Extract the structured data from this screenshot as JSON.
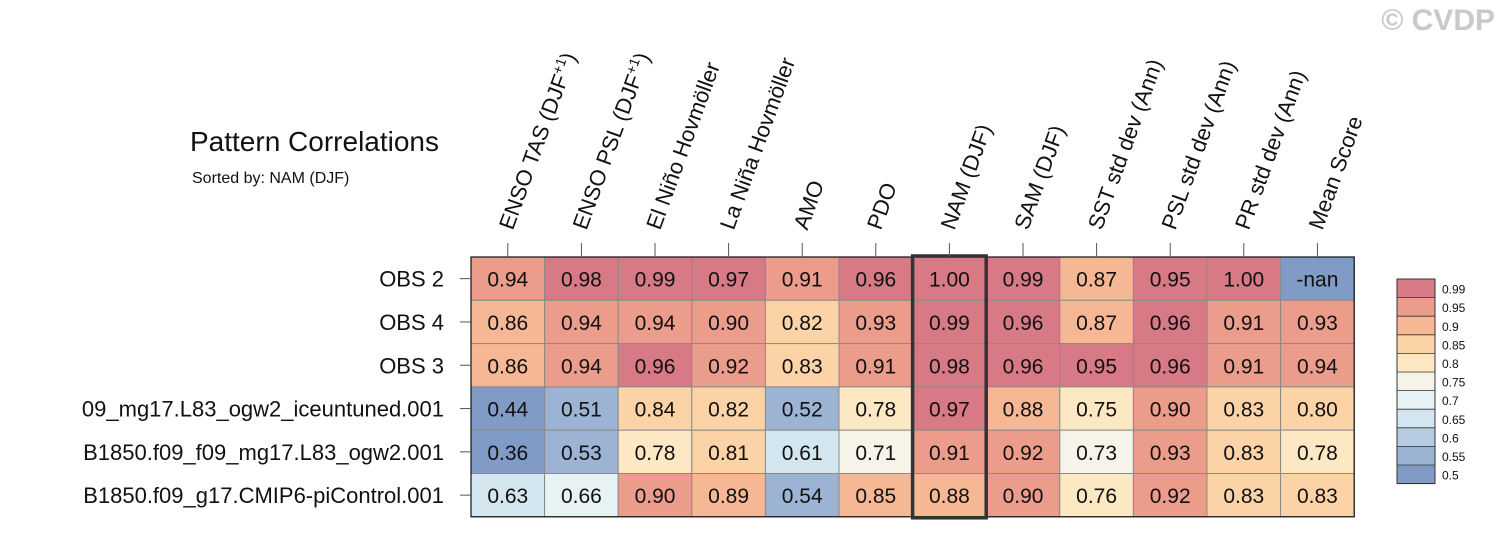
{
  "copyright": "© CVDP",
  "title": "Pattern Correlations",
  "subtitle": "Sorted by: NAM (DJF)",
  "colors": {
    "bins": [
      "#7f9bc6",
      "#9cb3d3",
      "#b7cce1",
      "#d3e5ee",
      "#e6f2f4",
      "#f6f4e8",
      "#fde8c4",
      "#fcd3a7",
      "#f6b795",
      "#ec9c8b",
      "#d77a85"
    ],
    "nan": "#7f9bc6",
    "grid": "#8a8a8a",
    "highlight": "#333333"
  },
  "chart_data": {
    "type": "heatmap",
    "columns": [
      "ENSO TAS (DJF+1)",
      "ENSO PSL (DJF+1)",
      "El Niño Hovmöller",
      "La Niña Hovmöller",
      "AMO",
      "PDO",
      "NAM (DJF)",
      "SAM (DJF)",
      "SST std dev (Ann)",
      "PSL std dev (Ann)",
      "PR std dev (Ann)",
      "Mean Score"
    ],
    "rows": [
      "OBS 2",
      "OBS 4",
      "OBS 3",
      "09_mg17.L83_ogw2_iceuntuned.001",
      "B1850.f09_f09_mg17.L83_ogw2.001",
      "B1850.f09_g17.CMIP6-piControl.001"
    ],
    "values": [
      [
        0.94,
        0.98,
        0.99,
        0.97,
        0.91,
        0.96,
        1.0,
        0.99,
        0.87,
        0.95,
        1.0,
        null
      ],
      [
        0.86,
        0.94,
        0.94,
        0.9,
        0.82,
        0.93,
        0.99,
        0.96,
        0.87,
        0.96,
        0.91,
        0.93
      ],
      [
        0.86,
        0.94,
        0.96,
        0.92,
        0.83,
        0.91,
        0.98,
        0.96,
        0.95,
        0.96,
        0.91,
        0.94
      ],
      [
        0.44,
        0.51,
        0.84,
        0.82,
        0.52,
        0.78,
        0.97,
        0.88,
        0.75,
        0.9,
        0.83,
        0.8
      ],
      [
        0.36,
        0.53,
        0.78,
        0.81,
        0.61,
        0.71,
        0.91,
        0.92,
        0.73,
        0.93,
        0.83,
        0.78
      ],
      [
        0.63,
        0.66,
        0.9,
        0.89,
        0.54,
        0.85,
        0.88,
        0.9,
        0.76,
        0.92,
        0.83,
        0.83
      ]
    ],
    "labels": [
      [
        "0.94",
        "0.98",
        "0.99",
        "0.97",
        "0.91",
        "0.96",
        "1.00",
        "0.99",
        "0.87",
        "0.95",
        "1.00",
        "-nan"
      ],
      [
        "0.86",
        "0.94",
        "0.94",
        "0.90",
        "0.82",
        "0.93",
        "0.99",
        "0.96",
        "0.87",
        "0.96",
        "0.91",
        "0.93"
      ],
      [
        "0.86",
        "0.94",
        "0.96",
        "0.92",
        "0.83",
        "0.91",
        "0.98",
        "0.96",
        "0.95",
        "0.96",
        "0.91",
        "0.94"
      ],
      [
        "0.44",
        "0.51",
        "0.84",
        "0.82",
        "0.52",
        "0.78",
        "0.97",
        "0.88",
        "0.75",
        "0.90",
        "0.83",
        "0.80"
      ],
      [
        "0.36",
        "0.53",
        "0.78",
        "0.81",
        "0.61",
        "0.71",
        "0.91",
        "0.92",
        "0.73",
        "0.93",
        "0.83",
        "0.78"
      ],
      [
        "0.63",
        "0.66",
        "0.90",
        "0.89",
        "0.54",
        "0.85",
        "0.88",
        "0.90",
        "0.76",
        "0.92",
        "0.83",
        "0.83"
      ]
    ],
    "highlight_column": "NAM (DJF)",
    "colorbar": {
      "levels": [
        0.5,
        0.55,
        0.6,
        0.65,
        0.7,
        0.75,
        0.8,
        0.85,
        0.9,
        0.95,
        0.99
      ],
      "tick_labels": [
        "0.5",
        "0.55",
        "0.6",
        "0.65",
        "0.7",
        "0.75",
        "0.8",
        "0.85",
        "0.9",
        "0.95",
        "0.99"
      ]
    }
  }
}
